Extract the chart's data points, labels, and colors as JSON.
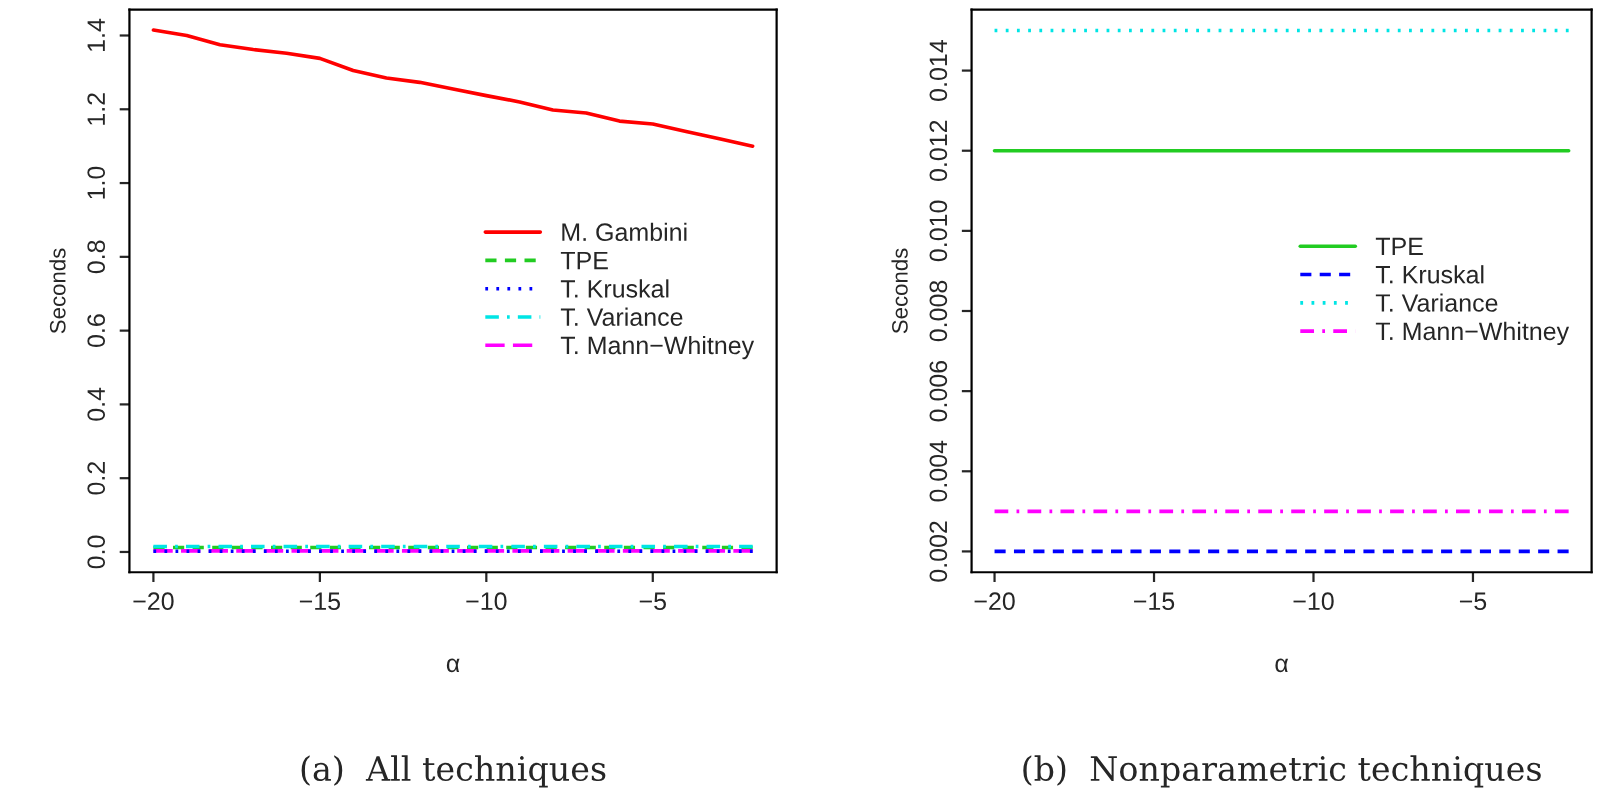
{
  "chart_data": [
    {
      "type": "line",
      "title": "(a)  All techniques",
      "xlabel": "α",
      "ylabel": "Seconds",
      "xlim": [
        -20.72,
        -1.28
      ],
      "ylim": [
        -0.055,
        1.47
      ],
      "xticks": [
        {
          "value": -20,
          "label": "−20"
        },
        {
          "value": -15,
          "label": "−15"
        },
        {
          "value": -10,
          "label": "−10"
        },
        {
          "value": -5,
          "label": "−5"
        }
      ],
      "yticks": [
        {
          "value": 0,
          "label": "0.0"
        },
        {
          "value": 0.2,
          "label": "0.2"
        },
        {
          "value": 0.4,
          "label": "0.4"
        },
        {
          "value": 0.6,
          "label": "0.6"
        },
        {
          "value": 0.8,
          "label": "0.8"
        },
        {
          "value": 1.0,
          "label": "1.0"
        },
        {
          "value": 1.2,
          "label": "1.2"
        },
        {
          "value": 1.4,
          "label": "1.4"
        }
      ],
      "grid": false,
      "legend": "right",
      "series": [
        {
          "name": "M. Gambini",
          "color": "#ff0000",
          "line_style": "solid",
          "x": [
            -20,
            -19,
            -18,
            -17,
            -16,
            -15,
            -14,
            -13,
            -12,
            -11,
            -10,
            -9,
            -8,
            -7,
            -6,
            -5,
            -4,
            -3,
            -2
          ],
          "values": [
            1.415,
            1.4,
            1.375,
            1.362,
            1.352,
            1.338,
            1.305,
            1.285,
            1.273,
            1.255,
            1.237,
            1.22,
            1.198,
            1.19,
            1.168,
            1.16,
            1.14,
            1.12,
            1.1
          ]
        },
        {
          "name": "TPE",
          "color": "#22cc22",
          "line_style": "dashed",
          "x": [
            -20,
            -2
          ],
          "values": [
            0.012,
            0.012
          ]
        },
        {
          "name": "T. Kruskal",
          "color": "#0000ff",
          "line_style": "dotted",
          "x": [
            -20,
            -2
          ],
          "values": [
            0.002,
            0.002
          ]
        },
        {
          "name": "T. Variance",
          "color": "#00e5e5",
          "line_style": "dashdot",
          "x": [
            -20,
            -2
          ],
          "values": [
            0.015,
            0.015
          ]
        },
        {
          "name": "T. Mann−Whitney",
          "color": "#ff00ff",
          "line_style": "longdash",
          "x": [
            -20,
            -2
          ],
          "values": [
            0.003,
            0.003
          ]
        }
      ]
    },
    {
      "type": "line",
      "title": "(b)  Nonparametric techniques",
      "xlabel": "α",
      "ylabel": "Seconds",
      "xlim": [
        -20.72,
        -1.28
      ],
      "ylim": [
        0.00148,
        0.01552
      ],
      "xticks": [
        {
          "value": -20,
          "label": "−20"
        },
        {
          "value": -15,
          "label": "−15"
        },
        {
          "value": -10,
          "label": "−10"
        },
        {
          "value": -5,
          "label": "−5"
        }
      ],
      "yticks": [
        0.002,
        0.004,
        0.006,
        0.008,
        {
          "value": 0.01,
          "label": "0.010"
        },
        0.012,
        0.014
      ],
      "grid": false,
      "legend": "right",
      "series": [
        {
          "name": "TPE",
          "color": "#22cc22",
          "line_style": "solid",
          "x": [
            -20,
            -2
          ],
          "values": [
            0.012,
            0.012
          ]
        },
        {
          "name": "T. Kruskal",
          "color": "#0000ff",
          "line_style": "dashed",
          "x": [
            -20,
            -2
          ],
          "values": [
            0.002,
            0.002
          ]
        },
        {
          "name": "T. Variance",
          "color": "#00e5e5",
          "line_style": "dotted",
          "x": [
            -20,
            -2
          ],
          "values": [
            0.015,
            0.015
          ]
        },
        {
          "name": "T. Mann−Whitney",
          "color": "#ff00ff",
          "line_style": "dashdot",
          "x": [
            -20,
            -2
          ],
          "values": [
            0.003,
            0.003
          ]
        }
      ]
    }
  ]
}
